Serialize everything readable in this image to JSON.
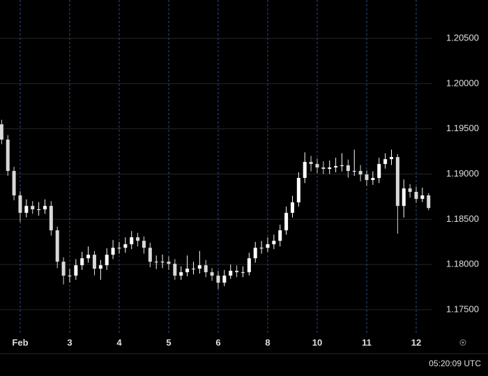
{
  "chart_data": {
    "type": "candlestick",
    "x": [
      -0.375,
      -0.25,
      -0.125,
      0,
      0.125,
      0.25,
      0.375,
      0.5,
      0.625,
      0.75,
      0.875,
      1,
      1.125,
      1.25,
      1.375,
      1.5,
      1.625,
      1.75,
      1.875,
      2,
      2.125,
      2.25,
      2.375,
      2.5,
      2.625,
      2.75,
      2.875,
      3,
      3.125,
      3.25,
      3.375,
      3.5,
      3.625,
      3.75,
      3.875,
      4,
      4.125,
      4.25,
      4.375,
      4.5,
      4.625,
      4.75,
      4.875,
      5,
      5.125,
      5.25,
      5.375,
      5.5,
      5.625,
      5.75,
      5.875,
      6,
      6.125,
      6.25,
      6.375,
      6.5,
      6.625,
      6.75,
      6.875,
      7,
      7.125,
      7.25,
      7.375,
      7.5,
      7.625,
      7.75,
      7.875,
      8,
      8.125,
      8.25
    ],
    "open": [
      1.1955,
      1.19381,
      1.19034,
      1.18764,
      1.18571,
      1.18648,
      1.1861,
      1.1861,
      1.18648,
      1.18378,
      1.18031,
      1.17877,
      1.17877,
      1.17992,
      1.18069,
      1.18108,
      1.17954,
      1.17992,
      1.18108,
      1.18185,
      1.18185,
      1.18224,
      1.18301,
      1.18262,
      1.18185,
      1.18031,
      1.18031,
      1.18031,
      1.18008,
      1.17877,
      1.17915,
      1.17954,
      1.17954,
      1.17992,
      1.17915,
      1.17877,
      1.17799,
      1.17877,
      1.17931,
      1.17915,
      1.17915,
      1.18069,
      1.18185,
      1.18185,
      1.18224,
      1.18262,
      1.18378,
      1.18571,
      1.18687,
      1.18957,
      1.19134,
      1.19111,
      1.19073,
      1.19057,
      1.19073,
      1.19088,
      1.19096,
      1.19034,
      1.19034,
      1.18995,
      1.18934,
      1.18957,
      1.19111,
      1.19165,
      1.19188,
      1.18648,
      1.18841,
      1.18803,
      1.18725,
      1.18764
    ],
    "high": [
      1.196,
      1.1943,
      1.1908,
      1.1881,
      1.1872,
      1.187,
      1.1869,
      1.1872,
      1.187,
      1.1842,
      1.1808,
      1.1795,
      1.1806,
      1.1814,
      1.182,
      1.1815,
      1.1805,
      1.1818,
      1.1827,
      1.1825,
      1.183,
      1.1837,
      1.1835,
      1.1831,
      1.1824,
      1.181,
      1.1811,
      1.1809,
      1.1806,
      1.1798,
      1.181,
      1.1803,
      1.1815,
      1.1805,
      1.1796,
      1.1793,
      1.1794,
      1.18,
      1.1799,
      1.1798,
      1.1813,
      1.1825,
      1.1826,
      1.183,
      1.1833,
      1.1844,
      1.1864,
      1.1876,
      1.1902,
      1.1924,
      1.192,
      1.1917,
      1.1914,
      1.1915,
      1.1918,
      1.1923,
      1.1916,
      1.1927,
      1.191,
      1.1904,
      1.1903,
      1.1918,
      1.1923,
      1.1927,
      1.1922,
      1.1894,
      1.1889,
      1.1886,
      1.1885,
      1.1879
    ],
    "low": [
      1.1933,
      1.1898,
      1.1871,
      1.1847,
      1.1852,
      1.1856,
      1.1854,
      1.1856,
      1.1832,
      1.1796,
      1.1778,
      1.178,
      1.1783,
      1.1794,
      1.1802,
      1.1788,
      1.1783,
      1.1794,
      1.1806,
      1.1812,
      1.1813,
      1.1817,
      1.182,
      1.1812,
      1.1797,
      1.1795,
      1.1796,
      1.1794,
      1.1783,
      1.1783,
      1.1787,
      1.1789,
      1.179,
      1.1786,
      1.1782,
      1.1773,
      1.1776,
      1.1784,
      1.1786,
      1.1786,
      1.1788,
      1.1802,
      1.1812,
      1.1814,
      1.1817,
      1.182,
      1.1833,
      1.1852,
      1.1864,
      1.189,
      1.1903,
      1.1901,
      1.19,
      1.19,
      1.1902,
      1.1903,
      1.1896,
      1.1898,
      1.1892,
      1.1887,
      1.1888,
      1.189,
      1.1906,
      1.191,
      1.1834,
      1.1852,
      1.1874,
      1.1868,
      1.1869,
      1.186
    ],
    "close": [
      1.19381,
      1.19034,
      1.18764,
      1.18571,
      1.18648,
      1.1861,
      1.1861,
      1.18648,
      1.18378,
      1.18031,
      1.17877,
      1.17877,
      1.17992,
      1.18069,
      1.18108,
      1.17954,
      1.17992,
      1.18108,
      1.18185,
      1.18185,
      1.18224,
      1.18301,
      1.18262,
      1.18185,
      1.18031,
      1.18031,
      1.18031,
      1.18008,
      1.17877,
      1.17915,
      1.17954,
      1.17954,
      1.17992,
      1.17915,
      1.17877,
      1.17799,
      1.17877,
      1.17931,
      1.17915,
      1.17915,
      1.18069,
      1.18185,
      1.18185,
      1.18224,
      1.18262,
      1.18378,
      1.18571,
      1.18687,
      1.18957,
      1.19134,
      1.19111,
      1.19073,
      1.19057,
      1.19073,
      1.19088,
      1.19096,
      1.19034,
      1.19034,
      1.18995,
      1.18934,
      1.18957,
      1.19111,
      1.19165,
      1.19188,
      1.18648,
      1.18841,
      1.18803,
      1.18725,
      1.18764,
      1.18625
    ],
    "up_color": "#ffffff",
    "down_color": "#d8d8d8",
    "xlim": [
      -0.408,
      8.324
    ],
    "xticks": [
      {
        "value": 0,
        "label": "Feb"
      },
      {
        "value": 1,
        "label": "3"
      },
      {
        "value": 2,
        "label": "4"
      },
      {
        "value": 3,
        "label": "5"
      },
      {
        "value": 4,
        "label": "6"
      },
      {
        "value": 5,
        "label": "8"
      },
      {
        "value": 6,
        "label": "10"
      },
      {
        "value": 7,
        "label": "11"
      },
      {
        "value": 8,
        "label": "12"
      }
    ],
    "ylim": [
      1.17238,
      1.20924
    ],
    "yticks": [
      {
        "value": 1.175,
        "label": "1.17500"
      },
      {
        "value": 1.18,
        "label": "1.18000"
      },
      {
        "value": 1.185,
        "label": "1.18500"
      },
      {
        "value": 1.19,
        "label": "1.19000"
      },
      {
        "value": 1.195,
        "label": "1.19500"
      },
      {
        "value": 1.2,
        "label": "1.20000"
      },
      {
        "value": 1.205,
        "label": "1.20500"
      }
    ],
    "grid": true
  },
  "status_bar": {
    "time": "05:20:09 UTC"
  }
}
